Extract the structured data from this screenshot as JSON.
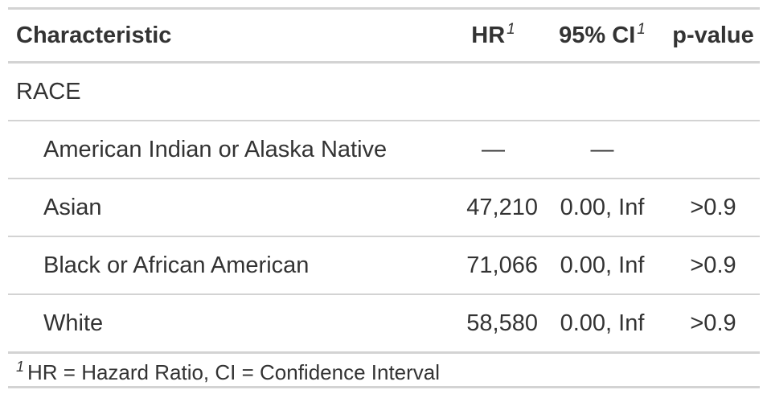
{
  "header": {
    "characteristic": "Characteristic",
    "hr": "HR",
    "hr_mark": "1",
    "ci": "95% CI",
    "ci_mark": "1",
    "pvalue": "p-value"
  },
  "group_label": "RACE",
  "rows": [
    {
      "label": "American Indian or Alaska Native",
      "hr": "—",
      "ci": "—",
      "p": ""
    },
    {
      "label": "Asian",
      "hr": "47,210",
      "ci": "0.00, Inf",
      "p": ">0.9"
    },
    {
      "label": "Black or African American",
      "hr": "71,066",
      "ci": "0.00, Inf",
      "p": ">0.9"
    },
    {
      "label": "White",
      "hr": "58,580",
      "ci": "0.00, Inf",
      "p": ">0.9"
    }
  ],
  "footnote": {
    "mark": "1",
    "text": "HR = Hazard Ratio, CI = Confidence Interval"
  }
}
